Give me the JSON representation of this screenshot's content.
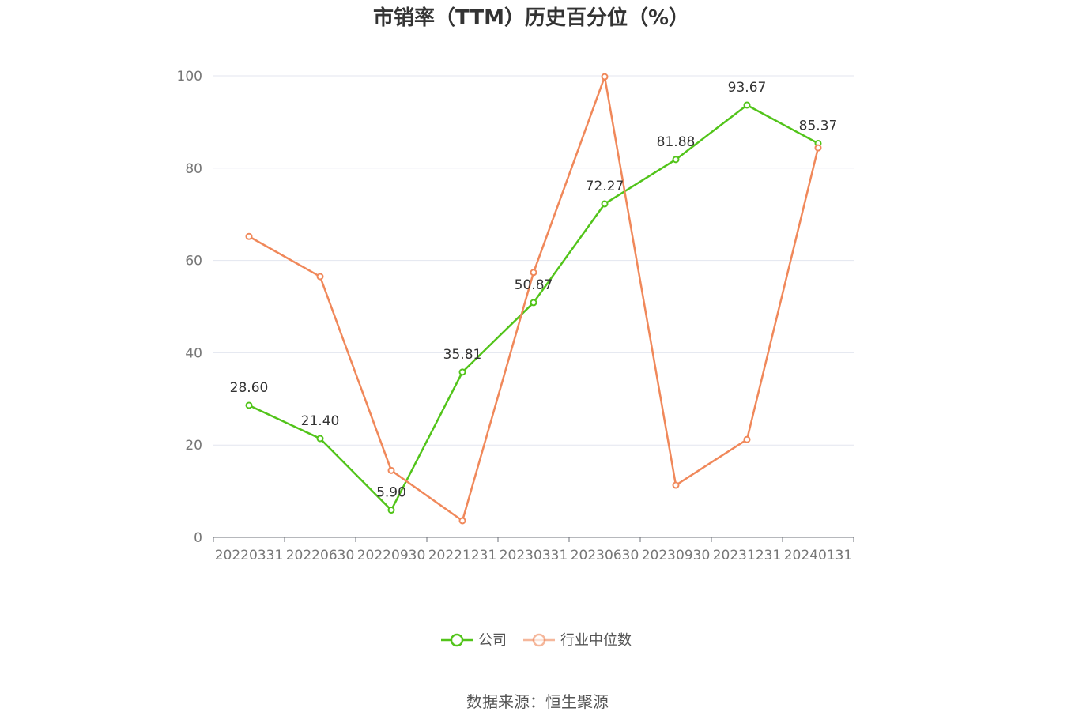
{
  "chart_data": {
    "type": "line",
    "title": "市销率（TTM）历史百分位（%）",
    "xlabel": "",
    "ylabel": "",
    "categories": [
      "20220331",
      "20220630",
      "20220930",
      "20221231",
      "20230331",
      "20230630",
      "20230930",
      "20231231",
      "20240131"
    ],
    "ylim": [
      0,
      100
    ],
    "yticks": [
      0,
      20,
      40,
      60,
      80,
      100
    ],
    "grid": true,
    "legend_position": "bottom",
    "series": [
      {
        "name": "公司",
        "color": "#52c41a",
        "values": [
          28.6,
          21.4,
          5.9,
          35.81,
          50.87,
          72.27,
          81.88,
          93.67,
          85.37
        ],
        "labels": [
          "28.60",
          "21.40",
          "5.90",
          "35.81",
          "50.87",
          "72.27",
          "81.88",
          "93.67",
          "85.37"
        ]
      },
      {
        "name": "行业中位数",
        "color": "#f0885a",
        "values": [
          65.2,
          56.5,
          14.5,
          3.6,
          57.4,
          99.8,
          11.3,
          21.2,
          84.4
        ]
      }
    ]
  },
  "source_text": "数据来源：恒生聚源"
}
